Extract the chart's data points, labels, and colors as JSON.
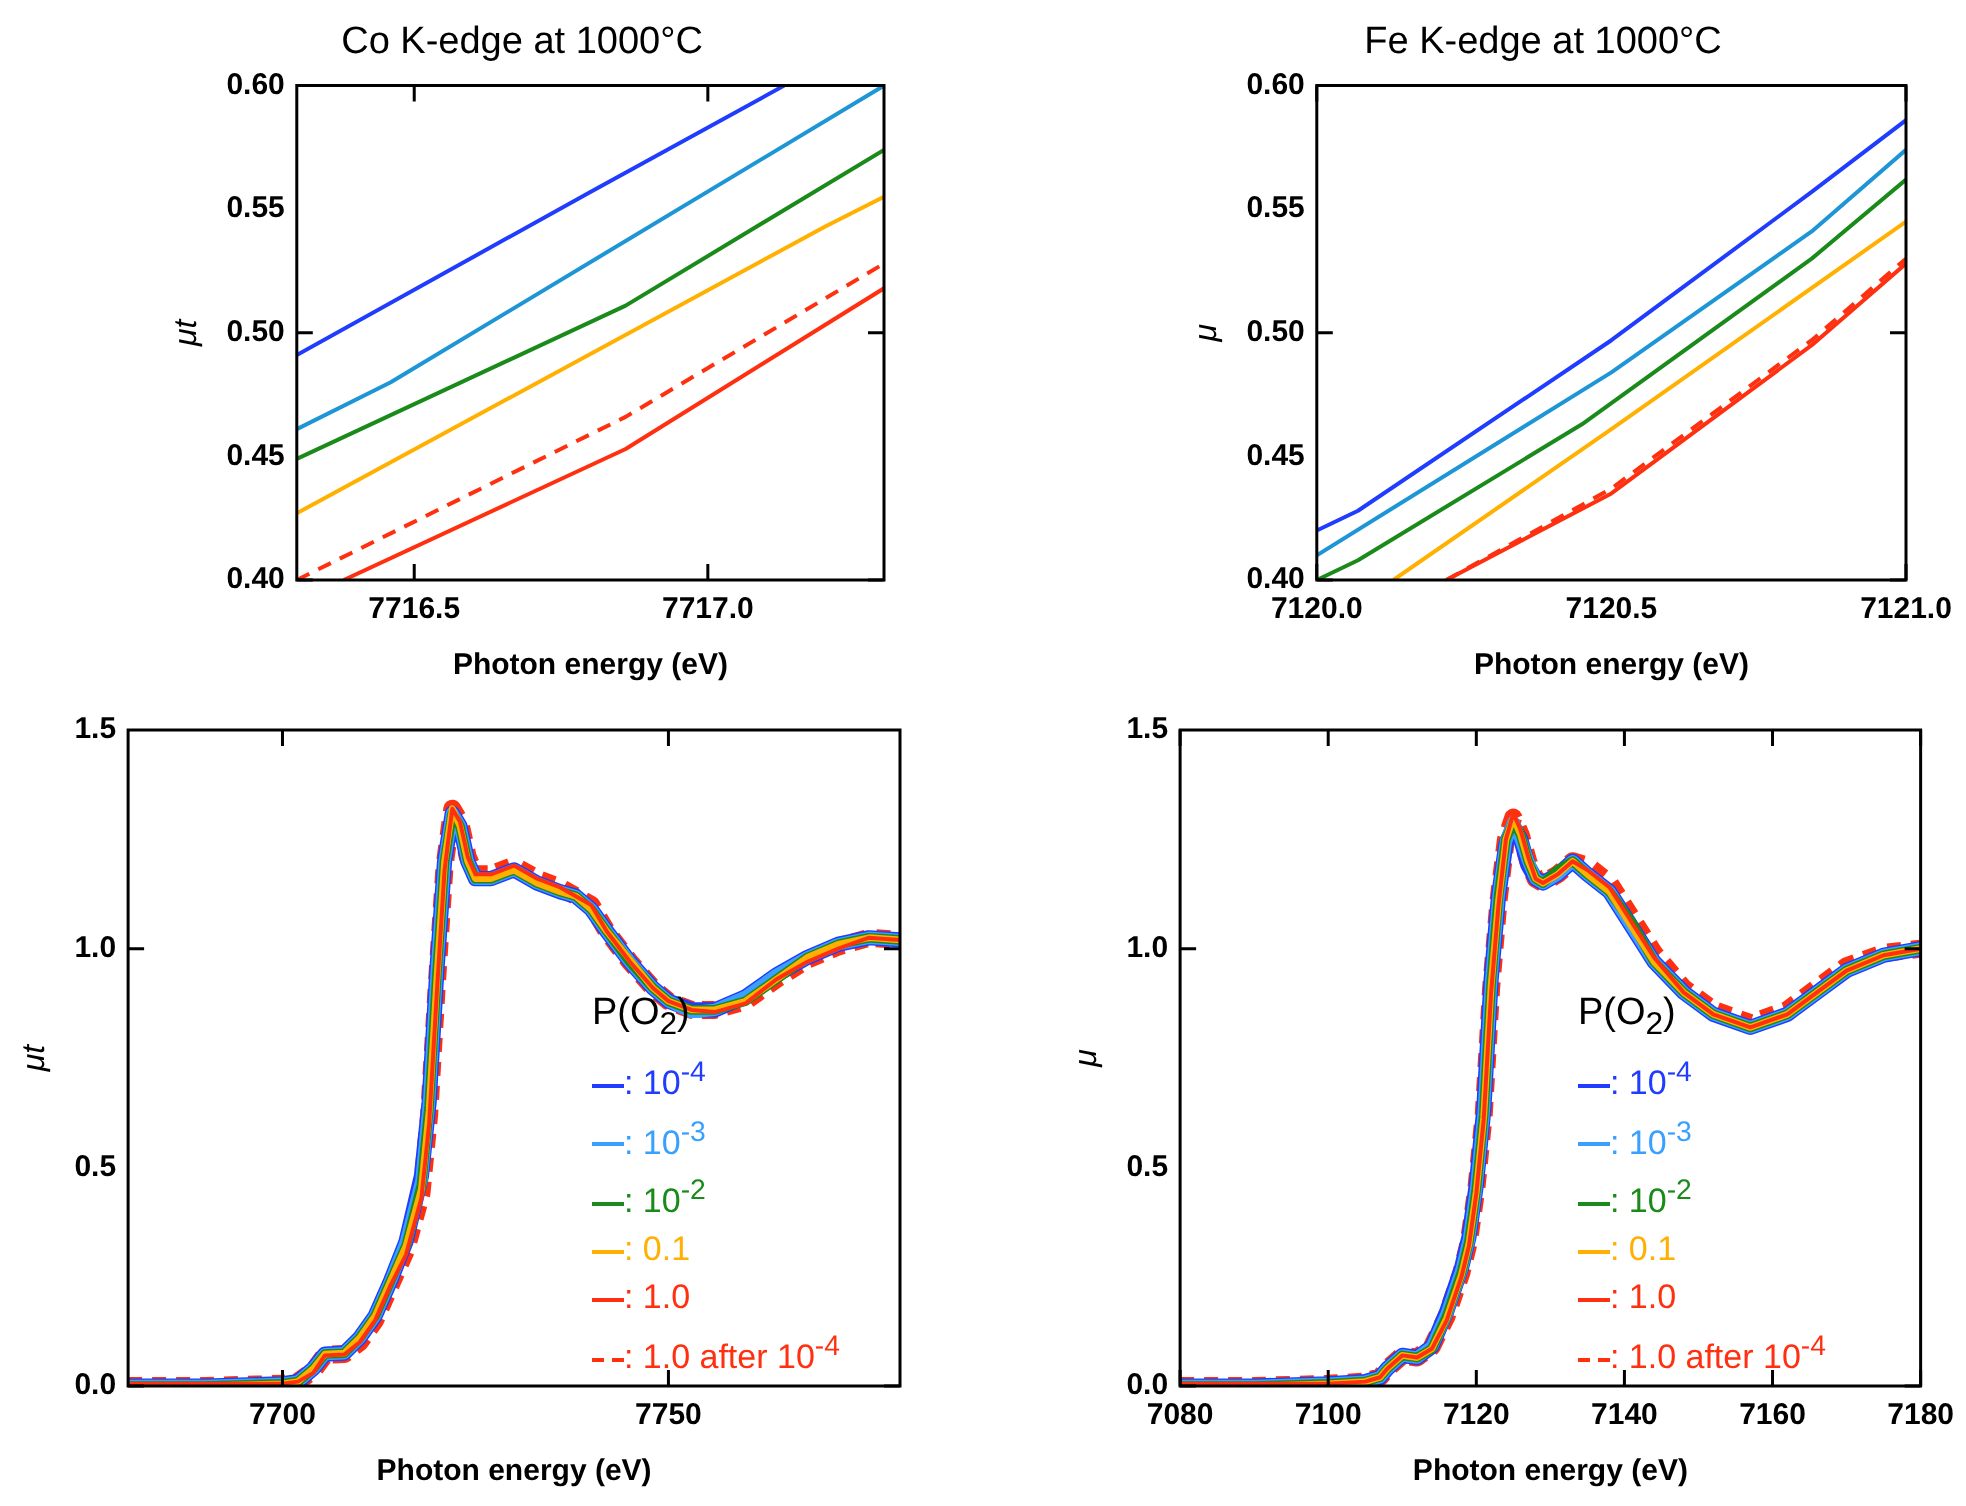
{
  "chart_data": [
    {
      "type": "line",
      "title": "Co K-edge at 1000°C",
      "xlabel": "Photon energy (eV)",
      "ylabel": "μt",
      "xlim": [
        7716.3,
        7717.3
      ],
      "ylim": [
        0.4,
        0.6
      ],
      "xticks": [
        7716.5,
        {
          "value": 7717,
          "label": "7717.0"
        }
      ],
      "yticks": [
        {
          "value": 0.4,
          "label": "0.40"
        },
        0.45,
        {
          "value": 0.5,
          "label": "0.50"
        },
        0.55,
        {
          "value": 0.6,
          "label": "0.60"
        }
      ],
      "series": [
        {
          "color": "#1f3cff",
          "x": [
            7716.3,
            7716.8,
            7717.13
          ],
          "values": [
            0.491,
            0.557,
            0.6
          ]
        },
        {
          "color": "#1e96d6",
          "x": [
            7716.3,
            7716.46,
            7717.3
          ],
          "values": [
            0.461,
            0.48,
            0.6
          ]
        },
        {
          "color": "#1a8a1a",
          "x": [
            7716.3,
            7716.86,
            7717.3
          ],
          "values": [
            0.449,
            0.511,
            0.574
          ]
        },
        {
          "color": "#ffb000",
          "x": [
            7716.3,
            7717.2,
            7717.3
          ],
          "values": [
            0.427,
            0.543,
            0.555
          ]
        },
        {
          "color": "#ff3010",
          "x": [
            7716.38,
            7716.86,
            7717.3
          ],
          "values": [
            0.4,
            0.453,
            0.518
          ]
        },
        {
          "color": "#ff3010",
          "line_style": "dashed",
          "x": [
            7716.3,
            7716.86,
            7717.3
          ],
          "values": [
            0.4,
            0.466,
            0.528
          ]
        }
      ]
    },
    {
      "type": "line",
      "title": "Fe K-edge at 1000°C",
      "xlabel": "Photon energy (eV)",
      "ylabel": "μ",
      "xlim": [
        7120,
        7121
      ],
      "ylim": [
        0.4,
        0.6
      ],
      "xticks": [
        {
          "value": 7120,
          "label": "7120.0"
        },
        7120.5,
        {
          "value": 7121,
          "label": "7121.0"
        }
      ],
      "yticks": [
        {
          "value": 0.4,
          "label": "0.40"
        },
        0.45,
        {
          "value": 0.5,
          "label": "0.50"
        },
        0.55,
        {
          "value": 0.6,
          "label": "0.60"
        }
      ],
      "series": [
        {
          "color": "#1f3cff",
          "x": [
            7120,
            7120.07,
            7120.5,
            7120.84,
            7121
          ],
          "values": [
            0.42,
            0.428,
            0.497,
            0.557,
            0.586
          ]
        },
        {
          "color": "#1e96d6",
          "x": [
            7120,
            7120.5,
            7120.84,
            7121
          ],
          "values": [
            0.41,
            0.484,
            0.541,
            0.574
          ]
        },
        {
          "color": "#1a8a1a",
          "x": [
            7120,
            7120.07,
            7120.45,
            7120.84,
            7121
          ],
          "values": [
            0.4,
            0.408,
            0.463,
            0.53,
            0.562
          ]
        },
        {
          "color": "#ffb000",
          "x": [
            7120.13,
            7120.5,
            7121
          ],
          "values": [
            0.4,
            0.461,
            0.545
          ]
        },
        {
          "color": "#ff3010",
          "x": [
            7120.22,
            7120.5,
            7120.84,
            7121
          ],
          "values": [
            0.4,
            0.435,
            0.495,
            0.528
          ]
        },
        {
          "color": "#ff3010",
          "line_style": "dashed",
          "x": [
            7120.22,
            7120.5,
            7120.84,
            7121
          ],
          "values": [
            0.4,
            0.437,
            0.497,
            0.53
          ]
        }
      ]
    },
    {
      "type": "line",
      "xlabel": "Photon energy (eV)",
      "ylabel": "μt",
      "xlim": [
        7680,
        7780
      ],
      "ylim": [
        0,
        1.5
      ],
      "xticks": [
        7700,
        7750
      ],
      "yticks": [
        {
          "value": 0,
          "label": "0.0"
        },
        0.5,
        {
          "value": 1,
          "label": "1.0"
        },
        1.5
      ],
      "legend": "bottom right",
      "legend_title": "P(O$_{2}$)",
      "x": [
        7680,
        7690,
        7700,
        7702,
        7704,
        7705.5,
        7708,
        7710,
        7712,
        7714,
        7716,
        7718,
        7719,
        7720,
        7721,
        7722,
        7723,
        7724,
        7725,
        7727,
        7730,
        7733,
        7736,
        7738,
        7740,
        7742,
        7745,
        7748,
        7750,
        7753,
        7756,
        7760,
        7764,
        7768,
        7772,
        7776,
        7780
      ],
      "series": [
        {
          "name": ": 10$^{-4}$",
          "color": "#1f3cff",
          "values": [
            0,
            0,
            0.005,
            0.01,
            0.04,
            0.073,
            0.075,
            0.11,
            0.16,
            0.24,
            0.33,
            0.48,
            0.65,
            0.95,
            1.2,
            1.31,
            1.28,
            1.2,
            1.16,
            1.16,
            1.18,
            1.15,
            1.13,
            1.12,
            1.09,
            1.04,
            0.97,
            0.91,
            0.88,
            0.86,
            0.86,
            0.89,
            0.94,
            0.98,
            1.01,
            1.025,
            1.02
          ]
        },
        {
          "name": ": 10$^{-3}$",
          "color": "#3aa0ff",
          "values": [
            0,
            0,
            0.005,
            0.01,
            0.04,
            0.073,
            0.075,
            0.11,
            0.16,
            0.24,
            0.33,
            0.47,
            0.65,
            0.95,
            1.2,
            1.31,
            1.28,
            1.2,
            1.16,
            1.16,
            1.18,
            1.15,
            1.13,
            1.12,
            1.09,
            1.04,
            0.97,
            0.91,
            0.88,
            0.855,
            0.86,
            0.89,
            0.94,
            0.98,
            1.01,
            1.025,
            1.02
          ]
        },
        {
          "name": ": 10$^{-2}$",
          "color": "#1a8a1a",
          "values": [
            0,
            0,
            0.005,
            0.01,
            0.04,
            0.073,
            0.075,
            0.11,
            0.16,
            0.24,
            0.32,
            0.46,
            0.64,
            0.94,
            1.2,
            1.31,
            1.28,
            1.2,
            1.16,
            1.16,
            1.18,
            1.15,
            1.13,
            1.12,
            1.09,
            1.04,
            0.97,
            0.91,
            0.88,
            0.86,
            0.86,
            0.88,
            0.93,
            0.98,
            1.01,
            1.025,
            1.02
          ]
        },
        {
          "name": ": 0.1",
          "color": "#ffb000",
          "values": [
            0,
            0,
            0.005,
            0.01,
            0.04,
            0.073,
            0.075,
            0.11,
            0.16,
            0.24,
            0.32,
            0.45,
            0.63,
            0.93,
            1.2,
            1.32,
            1.28,
            1.2,
            1.16,
            1.16,
            1.18,
            1.15,
            1.13,
            1.12,
            1.09,
            1.04,
            0.975,
            0.91,
            0.88,
            0.86,
            0.86,
            0.88,
            0.93,
            0.98,
            1.01,
            1.025,
            1.02
          ]
        },
        {
          "name": ": 1.0",
          "color": "#ff3010",
          "values": [
            0.005,
            0.005,
            0.005,
            0.01,
            0.03,
            0.07,
            0.072,
            0.1,
            0.15,
            0.23,
            0.3,
            0.43,
            0.6,
            0.9,
            1.18,
            1.32,
            1.29,
            1.21,
            1.17,
            1.17,
            1.19,
            1.16,
            1.14,
            1.12,
            1.1,
            1.04,
            0.97,
            0.91,
            0.88,
            0.86,
            0.855,
            0.875,
            0.93,
            0.97,
            1.0,
            1.025,
            1.02
          ]
        },
        {
          "name": ": 1.0 after 10$^{-4}$",
          "color": "#ff3010",
          "line_style": "dashed",
          "values": [
            0,
            0,
            0.005,
            0.01,
            0.035,
            0.071,
            0.073,
            0.1,
            0.15,
            0.23,
            0.31,
            0.44,
            0.62,
            0.92,
            1.19,
            1.32,
            1.29,
            1.21,
            1.17,
            1.17,
            1.19,
            1.16,
            1.14,
            1.12,
            1.1,
            1.04,
            0.97,
            0.91,
            0.88,
            0.86,
            0.86,
            0.88,
            0.93,
            0.975,
            1.005,
            1.025,
            1.02
          ]
        }
      ]
    },
    {
      "type": "line",
      "xlabel": "Photon energy (eV)",
      "ylabel": "μ",
      "xlim": [
        7080,
        7180
      ],
      "ylim": [
        0,
        1.5
      ],
      "xticks": [
        7080,
        7100,
        7120,
        7140,
        7160,
        7180
      ],
      "yticks": [
        {
          "value": 0,
          "label": "0.0"
        },
        0.5,
        {
          "value": 1,
          "label": "1.0"
        },
        1.5
      ],
      "legend": "bottom right",
      "legend_title": "P(O$_{2}$)",
      "x": [
        7080,
        7090,
        7100,
        7105,
        7107,
        7108,
        7110,
        7112,
        7114,
        7116,
        7118,
        7119,
        7120,
        7121,
        7122,
        7123,
        7124,
        7125,
        7126,
        7127,
        7128,
        7129,
        7131,
        7133,
        7135,
        7138,
        7141,
        7144,
        7148,
        7152,
        7157,
        7162,
        7166,
        7170,
        7175,
        7180
      ],
      "series": [
        {
          "name": ": 10$^{-4}$",
          "color": "#1f3cff",
          "values": [
            0,
            0,
            0.005,
            0.01,
            0.02,
            0.04,
            0.07,
            0.065,
            0.09,
            0.17,
            0.27,
            0.34,
            0.46,
            0.63,
            0.93,
            1.12,
            1.24,
            1.28,
            1.25,
            1.19,
            1.16,
            1.15,
            1.17,
            1.2,
            1.17,
            1.13,
            1.05,
            0.97,
            0.9,
            0.85,
            0.82,
            0.85,
            0.9,
            0.95,
            0.985,
            1.0
          ]
        },
        {
          "name": ": 10$^{-3}$",
          "color": "#3aa0ff",
          "values": [
            0,
            0,
            0.005,
            0.01,
            0.02,
            0.04,
            0.07,
            0.065,
            0.09,
            0.165,
            0.265,
            0.335,
            0.455,
            0.625,
            0.925,
            1.12,
            1.245,
            1.29,
            1.25,
            1.2,
            1.16,
            1.15,
            1.17,
            1.2,
            1.17,
            1.13,
            1.05,
            0.97,
            0.9,
            0.85,
            0.82,
            0.85,
            0.9,
            0.95,
            0.985,
            1.0
          ]
        },
        {
          "name": ": 10$^{-2}$",
          "color": "#1a8a1a",
          "values": [
            0,
            0,
            0.005,
            0.01,
            0.02,
            0.04,
            0.07,
            0.065,
            0.085,
            0.16,
            0.26,
            0.33,
            0.45,
            0.62,
            0.92,
            1.12,
            1.25,
            1.29,
            1.26,
            1.2,
            1.16,
            1.15,
            1.18,
            1.2,
            1.17,
            1.13,
            1.06,
            0.97,
            0.9,
            0.85,
            0.82,
            0.85,
            0.9,
            0.95,
            0.985,
            1.0
          ]
        },
        {
          "name": ": 0.1",
          "color": "#ffb000",
          "values": [
            0,
            0,
            0.005,
            0.01,
            0.02,
            0.04,
            0.07,
            0.065,
            0.085,
            0.155,
            0.255,
            0.325,
            0.445,
            0.615,
            0.915,
            1.11,
            1.25,
            1.3,
            1.26,
            1.2,
            1.16,
            1.15,
            1.17,
            1.2,
            1.17,
            1.13,
            1.05,
            0.97,
            0.9,
            0.85,
            0.82,
            0.85,
            0.9,
            0.95,
            0.985,
            1.0
          ]
        },
        {
          "name": ": 1.0",
          "color": "#ff3010",
          "values": [
            0.005,
            0.005,
            0.005,
            0.01,
            0.02,
            0.04,
            0.07,
            0.065,
            0.085,
            0.15,
            0.25,
            0.32,
            0.44,
            0.61,
            0.9,
            1.1,
            1.25,
            1.31,
            1.27,
            1.21,
            1.16,
            1.15,
            1.17,
            1.2,
            1.18,
            1.14,
            1.06,
            0.98,
            0.9,
            0.85,
            0.82,
            0.85,
            0.9,
            0.95,
            0.985,
            1.0
          ]
        },
        {
          "name": ": 1.0 after 10$^{-4}$",
          "color": "#ff3010",
          "line_style": "dashed",
          "values": [
            0,
            0,
            0.005,
            0.01,
            0.02,
            0.04,
            0.07,
            0.065,
            0.09,
            0.16,
            0.26,
            0.33,
            0.45,
            0.62,
            0.91,
            1.11,
            1.25,
            1.3,
            1.26,
            1.2,
            1.16,
            1.15,
            1.17,
            1.2,
            1.19,
            1.15,
            1.07,
            0.99,
            0.91,
            0.86,
            0.83,
            0.86,
            0.91,
            0.96,
            0.99,
            1.0
          ]
        }
      ]
    }
  ]
}
